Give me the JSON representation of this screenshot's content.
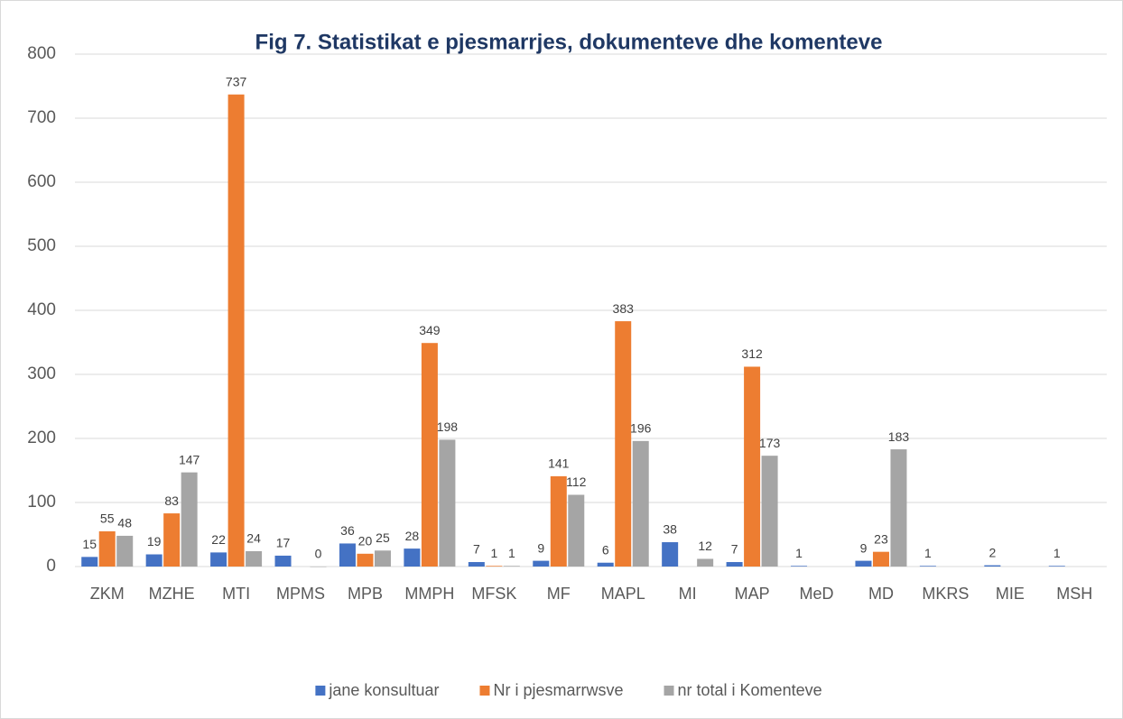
{
  "chart_data": {
    "type": "bar",
    "title": "Fig 7. Statistikat e pjesmarrjes, dokumenteve dhe komenteve",
    "categories": [
      "ZKM",
      "MZHE",
      "MTI",
      "MPMS",
      "MPB",
      "MMPH",
      "MFSK",
      "MF",
      "MAPL",
      "MI",
      "MAP",
      "MeD",
      "MD",
      "MKRS",
      "MIE",
      "MSH"
    ],
    "series": [
      {
        "name": "jane konsultuar",
        "color": "#4472c4",
        "values": [
          15,
          19,
          22,
          17,
          36,
          28,
          7,
          9,
          6,
          38,
          7,
          1,
          9,
          1,
          2,
          1
        ]
      },
      {
        "name": "Nr i pjesmarrwsve",
        "color": "#ed7d31",
        "values": [
          55,
          83,
          737,
          null,
          20,
          349,
          1,
          141,
          383,
          null,
          312,
          null,
          23,
          null,
          null,
          null
        ]
      },
      {
        "name": "nr total  i Komenteve",
        "color": "#a5a5a5",
        "values": [
          48,
          147,
          24,
          0,
          25,
          198,
          1,
          112,
          196,
          12,
          173,
          null,
          183,
          null,
          null,
          null
        ]
      }
    ],
    "ylim": [
      0,
      800
    ],
    "yticks": [
      0,
      100,
      200,
      300,
      400,
      500,
      600,
      700,
      800
    ],
    "grid": true,
    "legend": "bottom"
  }
}
